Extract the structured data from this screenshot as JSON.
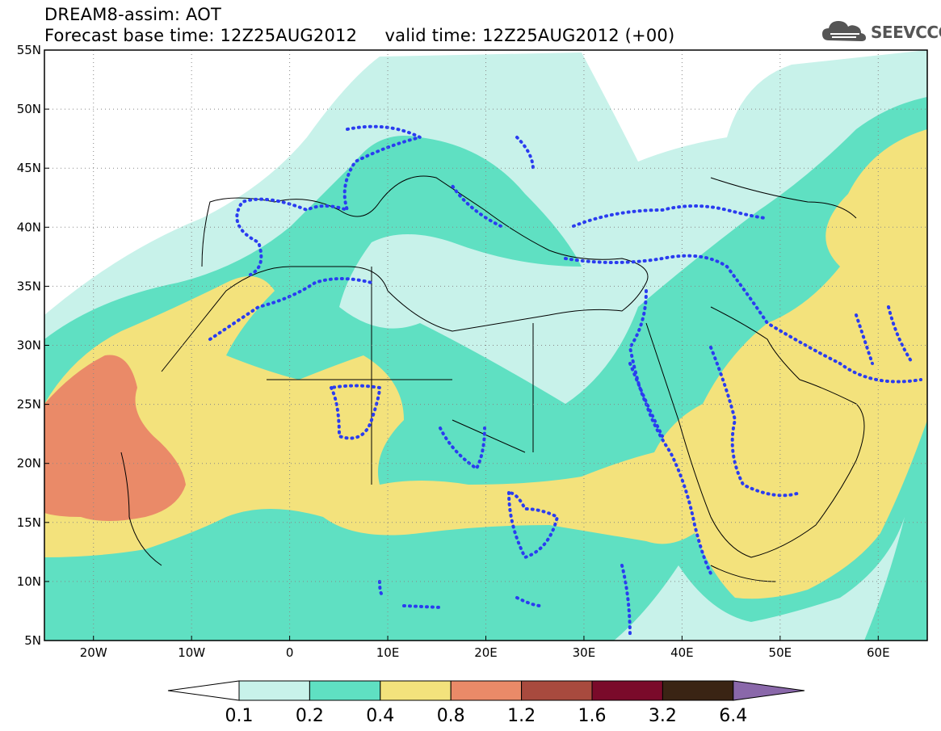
{
  "header": {
    "line1": "DREAM8-assim: AOT",
    "line2": "Forecast base time: 12Z25AUG2012     valid time: 12Z25AUG2012 (+00)"
  },
  "logo": {
    "text": "SEEVCCC",
    "icon": "cloud-icon"
  },
  "map": {
    "lon_range": [
      -25,
      65
    ],
    "lat_range": [
      5,
      55
    ],
    "lat_labels": [
      "55N",
      "50N",
      "45N",
      "40N",
      "35N",
      "30N",
      "25N",
      "20N",
      "15N",
      "10N",
      "5N"
    ],
    "lon_labels": [
      "20W",
      "10W",
      "0",
      "10E",
      "20E",
      "30E",
      "40E",
      "50E",
      "60E"
    ],
    "grid": "dotted"
  },
  "colorbar": {
    "levels": [
      "0.1",
      "0.2",
      "0.4",
      "0.8",
      "1.2",
      "1.6",
      "3.2",
      "6.4"
    ],
    "colors": {
      "c1": "#c8f2ea",
      "c2": "#5fe0c2",
      "c3": "#f3e27c",
      "c4": "#ea8a68",
      "c5": "#a84a3e",
      "c6": "#7a0a2a",
      "c7": "#3a2414",
      "c8": "#8a68aa"
    }
  },
  "contour_color": "#2a3cf0"
}
